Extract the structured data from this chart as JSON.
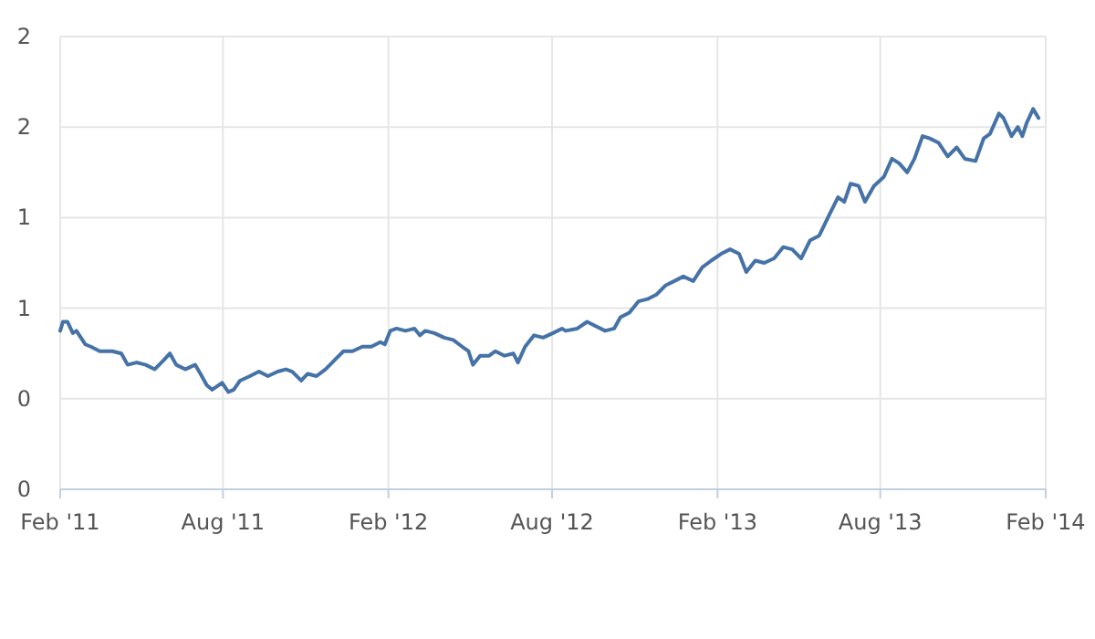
{
  "chart_data": {
    "type": "line",
    "grid": true,
    "marker": "none",
    "line_style": "solid",
    "xlim": [
      "2011-02-01",
      "2014-02-01"
    ],
    "xticks": [
      {
        "value": "2011-02-01",
        "label": "Feb '11"
      },
      {
        "value": "2011-08-01",
        "label": "Aug '11"
      },
      {
        "value": "2012-02-01",
        "label": "Feb '12"
      },
      {
        "value": "2012-08-01",
        "label": "Aug '12"
      },
      {
        "value": "2013-02-01",
        "label": "Feb '13"
      },
      {
        "value": "2013-08-01",
        "label": "Aug '13"
      },
      {
        "value": "2014-02-01",
        "label": "Feb '14"
      }
    ],
    "ylim": [
      0,
      2
    ],
    "yticks": [
      0,
      {
        "value": 0.4,
        "label": "0"
      },
      {
        "value": 0.8,
        "label": "1"
      },
      {
        "value": 1.2,
        "label": "1"
      },
      {
        "value": 1.6,
        "label": "2"
      },
      2
    ],
    "series": [
      {
        "color": "#4572a7",
        "x": [
          "2011-02-01",
          "2011-02-04",
          "2011-02-09",
          "2011-02-15",
          "2011-02-19",
          "2011-03-01",
          "2011-03-07",
          "2011-03-17",
          "2011-03-31",
          "2011-04-10",
          "2011-04-17",
          "2011-04-27",
          "2011-05-07",
          "2011-05-17",
          "2011-05-27",
          "2011-06-03",
          "2011-06-10",
          "2011-06-20",
          "2011-07-01",
          "2011-07-07",
          "2011-07-14",
          "2011-07-20",
          "2011-07-31",
          "2011-08-07",
          "2011-08-13",
          "2011-08-20",
          "2011-08-31",
          "2011-09-10",
          "2011-09-20",
          "2011-10-01",
          "2011-10-10",
          "2011-10-17",
          "2011-10-27",
          "2011-11-03",
          "2011-11-13",
          "2011-11-23",
          "2011-12-03",
          "2011-12-13",
          "2011-12-23",
          "2012-01-03",
          "2012-01-13",
          "2012-01-23",
          "2012-01-28",
          "2012-02-03",
          "2012-02-10",
          "2012-02-20",
          "2012-03-01",
          "2012-03-07",
          "2012-03-13",
          "2012-03-23",
          "2012-04-03",
          "2012-04-13",
          "2012-04-23",
          "2012-04-30",
          "2012-05-05",
          "2012-05-13",
          "2012-05-23",
          "2012-05-30",
          "2012-06-09",
          "2012-06-19",
          "2012-06-24",
          "2012-07-02",
          "2012-07-12",
          "2012-07-22",
          "2012-08-02",
          "2012-08-12",
          "2012-08-16",
          "2012-08-29",
          "2012-09-09",
          "2012-09-19",
          "2012-09-29",
          "2012-10-09",
          "2012-10-16",
          "2012-10-26",
          "2012-11-05",
          "2012-11-15",
          "2012-11-25",
          "2012-12-05",
          "2012-12-15",
          "2012-12-25",
          "2013-01-05",
          "2013-01-15",
          "2013-01-25",
          "2013-02-05",
          "2013-02-15",
          "2013-02-25",
          "2013-03-05",
          "2013-03-15",
          "2013-03-25",
          "2013-04-05",
          "2013-04-15",
          "2013-04-25",
          "2013-05-05",
          "2013-05-15",
          "2013-05-25",
          "2013-06-05",
          "2013-06-15",
          "2013-06-22",
          "2013-06-29",
          "2013-07-08",
          "2013-07-15",
          "2013-07-25",
          "2013-08-05",
          "2013-08-14",
          "2013-08-22",
          "2013-08-31",
          "2013-09-08",
          "2013-09-17",
          "2013-09-25",
          "2013-10-05",
          "2013-10-15",
          "2013-10-25",
          "2013-11-03",
          "2013-11-15",
          "2013-11-24",
          "2013-12-01",
          "2013-12-11",
          "2013-12-16",
          "2013-12-25",
          "2014-01-01",
          "2014-01-06",
          "2014-01-11",
          "2014-01-18",
          "2014-01-24"
        ],
        "values": [
          0.7,
          0.74,
          0.74,
          0.69,
          0.7,
          0.64,
          0.63,
          0.61,
          0.61,
          0.6,
          0.55,
          0.56,
          0.55,
          0.53,
          0.57,
          0.6,
          0.55,
          0.53,
          0.55,
          0.51,
          0.46,
          0.44,
          0.47,
          0.43,
          0.44,
          0.48,
          0.5,
          0.52,
          0.5,
          0.52,
          0.53,
          0.52,
          0.48,
          0.51,
          0.5,
          0.53,
          0.57,
          0.61,
          0.61,
          0.63,
          0.63,
          0.65,
          0.64,
          0.7,
          0.71,
          0.7,
          0.71,
          0.68,
          0.7,
          0.69,
          0.67,
          0.66,
          0.63,
          0.61,
          0.55,
          0.59,
          0.59,
          0.61,
          0.59,
          0.6,
          0.56,
          0.63,
          0.68,
          0.67,
          0.69,
          0.71,
          0.7,
          0.71,
          0.74,
          0.72,
          0.7,
          0.71,
          0.76,
          0.78,
          0.83,
          0.84,
          0.86,
          0.9,
          0.92,
          0.94,
          0.92,
          0.98,
          1.01,
          1.04,
          1.06,
          1.04,
          0.96,
          1.01,
          1.0,
          1.02,
          1.07,
          1.06,
          1.02,
          1.1,
          1.12,
          1.21,
          1.29,
          1.27,
          1.35,
          1.34,
          1.27,
          1.34,
          1.38,
          1.46,
          1.44,
          1.4,
          1.46,
          1.56,
          1.55,
          1.53,
          1.47,
          1.51,
          1.46,
          1.45,
          1.55,
          1.57,
          1.66,
          1.64,
          1.56,
          1.6,
          1.56,
          1.62,
          1.68,
          1.64
        ]
      }
    ]
  }
}
